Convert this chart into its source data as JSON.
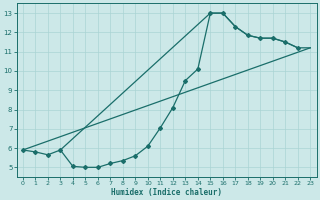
{
  "xlabel": "Humidex (Indice chaleur)",
  "bg_color": "#cce8e8",
  "line_color": "#1a6e6a",
  "grid_color": "#aad4d4",
  "xlim": [
    -0.5,
    23.5
  ],
  "ylim": [
    4.5,
    13.5
  ],
  "yticks": [
    5,
    6,
    7,
    8,
    9,
    10,
    11,
    12,
    13
  ],
  "line1_x": [
    0,
    1,
    2,
    3,
    4,
    5,
    6,
    7,
    8,
    9,
    10,
    11,
    12,
    13,
    14,
    15,
    16,
    17,
    18,
    19,
    20,
    21,
    22
  ],
  "line1_y": [
    5.9,
    5.8,
    5.65,
    5.9,
    5.05,
    5.0,
    5.0,
    5.2,
    5.35,
    5.6,
    6.1,
    7.05,
    8.1,
    9.5,
    10.1,
    13.0,
    13.0,
    12.3,
    11.85,
    11.7,
    11.7,
    11.5,
    11.2
  ],
  "line2_x": [
    0,
    23
  ],
  "line2_y": [
    5.9,
    11.2
  ],
  "line3_x": [
    3,
    15
  ],
  "line3_y": [
    5.9,
    13.0
  ],
  "line4_x": [
    15,
    16,
    17,
    18,
    19,
    20,
    21,
    22,
    23
  ],
  "line4_y": [
    13.0,
    13.0,
    12.3,
    11.85,
    11.7,
    11.7,
    11.5,
    11.2,
    11.2
  ]
}
